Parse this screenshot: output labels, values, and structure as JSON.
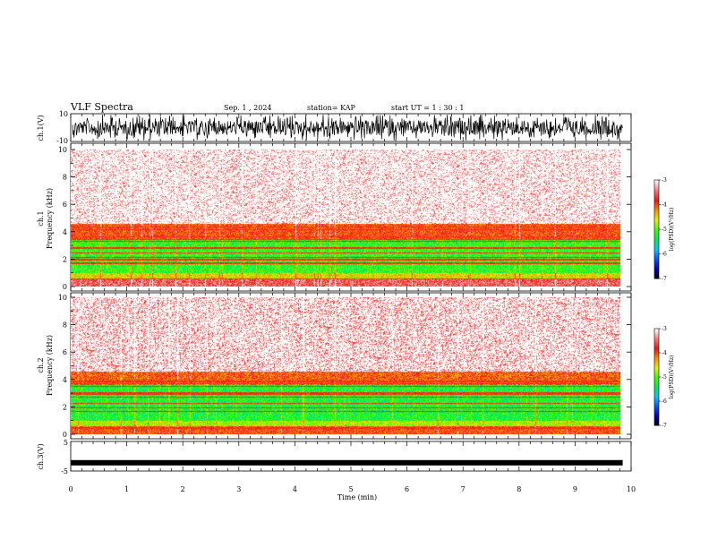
{
  "header": {
    "title": "VLF Spectra",
    "date": "Sep. 1 , 2024",
    "station": "station= KAP",
    "start": "start  UT =   1 : 30 : 1"
  },
  "chart_data": [
    {
      "type": "line",
      "name": "ch1-waveform",
      "ylabel": "ch.1(V)",
      "ylim": [
        -10,
        10
      ],
      "ytick_labels": [
        "10",
        "-10"
      ],
      "x_range": [
        0,
        9.85
      ],
      "xlim": [
        0,
        10
      ]
    },
    {
      "type": "heatmap",
      "name": "ch1-spectrogram",
      "ylabel": "ch.1\nFrequency  (kHz)",
      "ylim": [
        0,
        10
      ],
      "yticks": [
        0,
        2,
        4,
        6,
        8,
        10
      ],
      "bands": [
        {
          "from": 0,
          "to": 0.6,
          "level": -3.6
        },
        {
          "from": 0.6,
          "to": 1.0,
          "level": -4.6
        },
        {
          "from": 1.0,
          "to": 3.5,
          "level": -5.2
        },
        {
          "from": 3.5,
          "to": 4.6,
          "level": -4.0
        },
        {
          "from": 4.6,
          "to": 10,
          "level": -3.3
        }
      ],
      "colorbar": {
        "label": "log(PSD)(V²/Hz)",
        "min": -7,
        "max": -3,
        "ticks": [
          "-3",
          "-4",
          "-5",
          "-6",
          "-7"
        ]
      }
    },
    {
      "type": "heatmap",
      "name": "ch2-spectrogram",
      "ylabel": "ch.2\nFrequency  (kHz)",
      "ylim": [
        0,
        10
      ],
      "yticks": [
        0,
        2,
        4,
        6,
        8,
        10
      ],
      "bands": [
        {
          "from": 0,
          "to": 0.6,
          "level": -4.0
        },
        {
          "from": 0.6,
          "to": 1.0,
          "level": -4.8
        },
        {
          "from": 1.0,
          "to": 3.6,
          "level": -5.3
        },
        {
          "from": 3.6,
          "to": 4.6,
          "level": -4.1
        },
        {
          "from": 4.6,
          "to": 10,
          "level": -3.4
        }
      ],
      "colorbar": {
        "label": "log(PSD)(V²/Hz)",
        "min": -7,
        "max": -3,
        "ticks": [
          "-3",
          "-4",
          "-5",
          "-6",
          "-7"
        ]
      }
    },
    {
      "type": "line",
      "name": "ch3-waveform",
      "ylabel": "ch.3(V)",
      "ylim": [
        -5,
        5
      ],
      "ytick_labels": [
        "5",
        "-5"
      ],
      "level_v": -2.2,
      "x_range": [
        0,
        9.85
      ]
    }
  ],
  "xaxis": {
    "label": "Time  (min)",
    "ticks": [
      0,
      1,
      2,
      3,
      4,
      5,
      6,
      7,
      8,
      9,
      10
    ],
    "tick_labels": [
      "0",
      "1",
      "2",
      "3",
      "4",
      "5",
      "6",
      "7",
      "8",
      "9",
      "10"
    ],
    "xlim": [
      0,
      10
    ]
  }
}
